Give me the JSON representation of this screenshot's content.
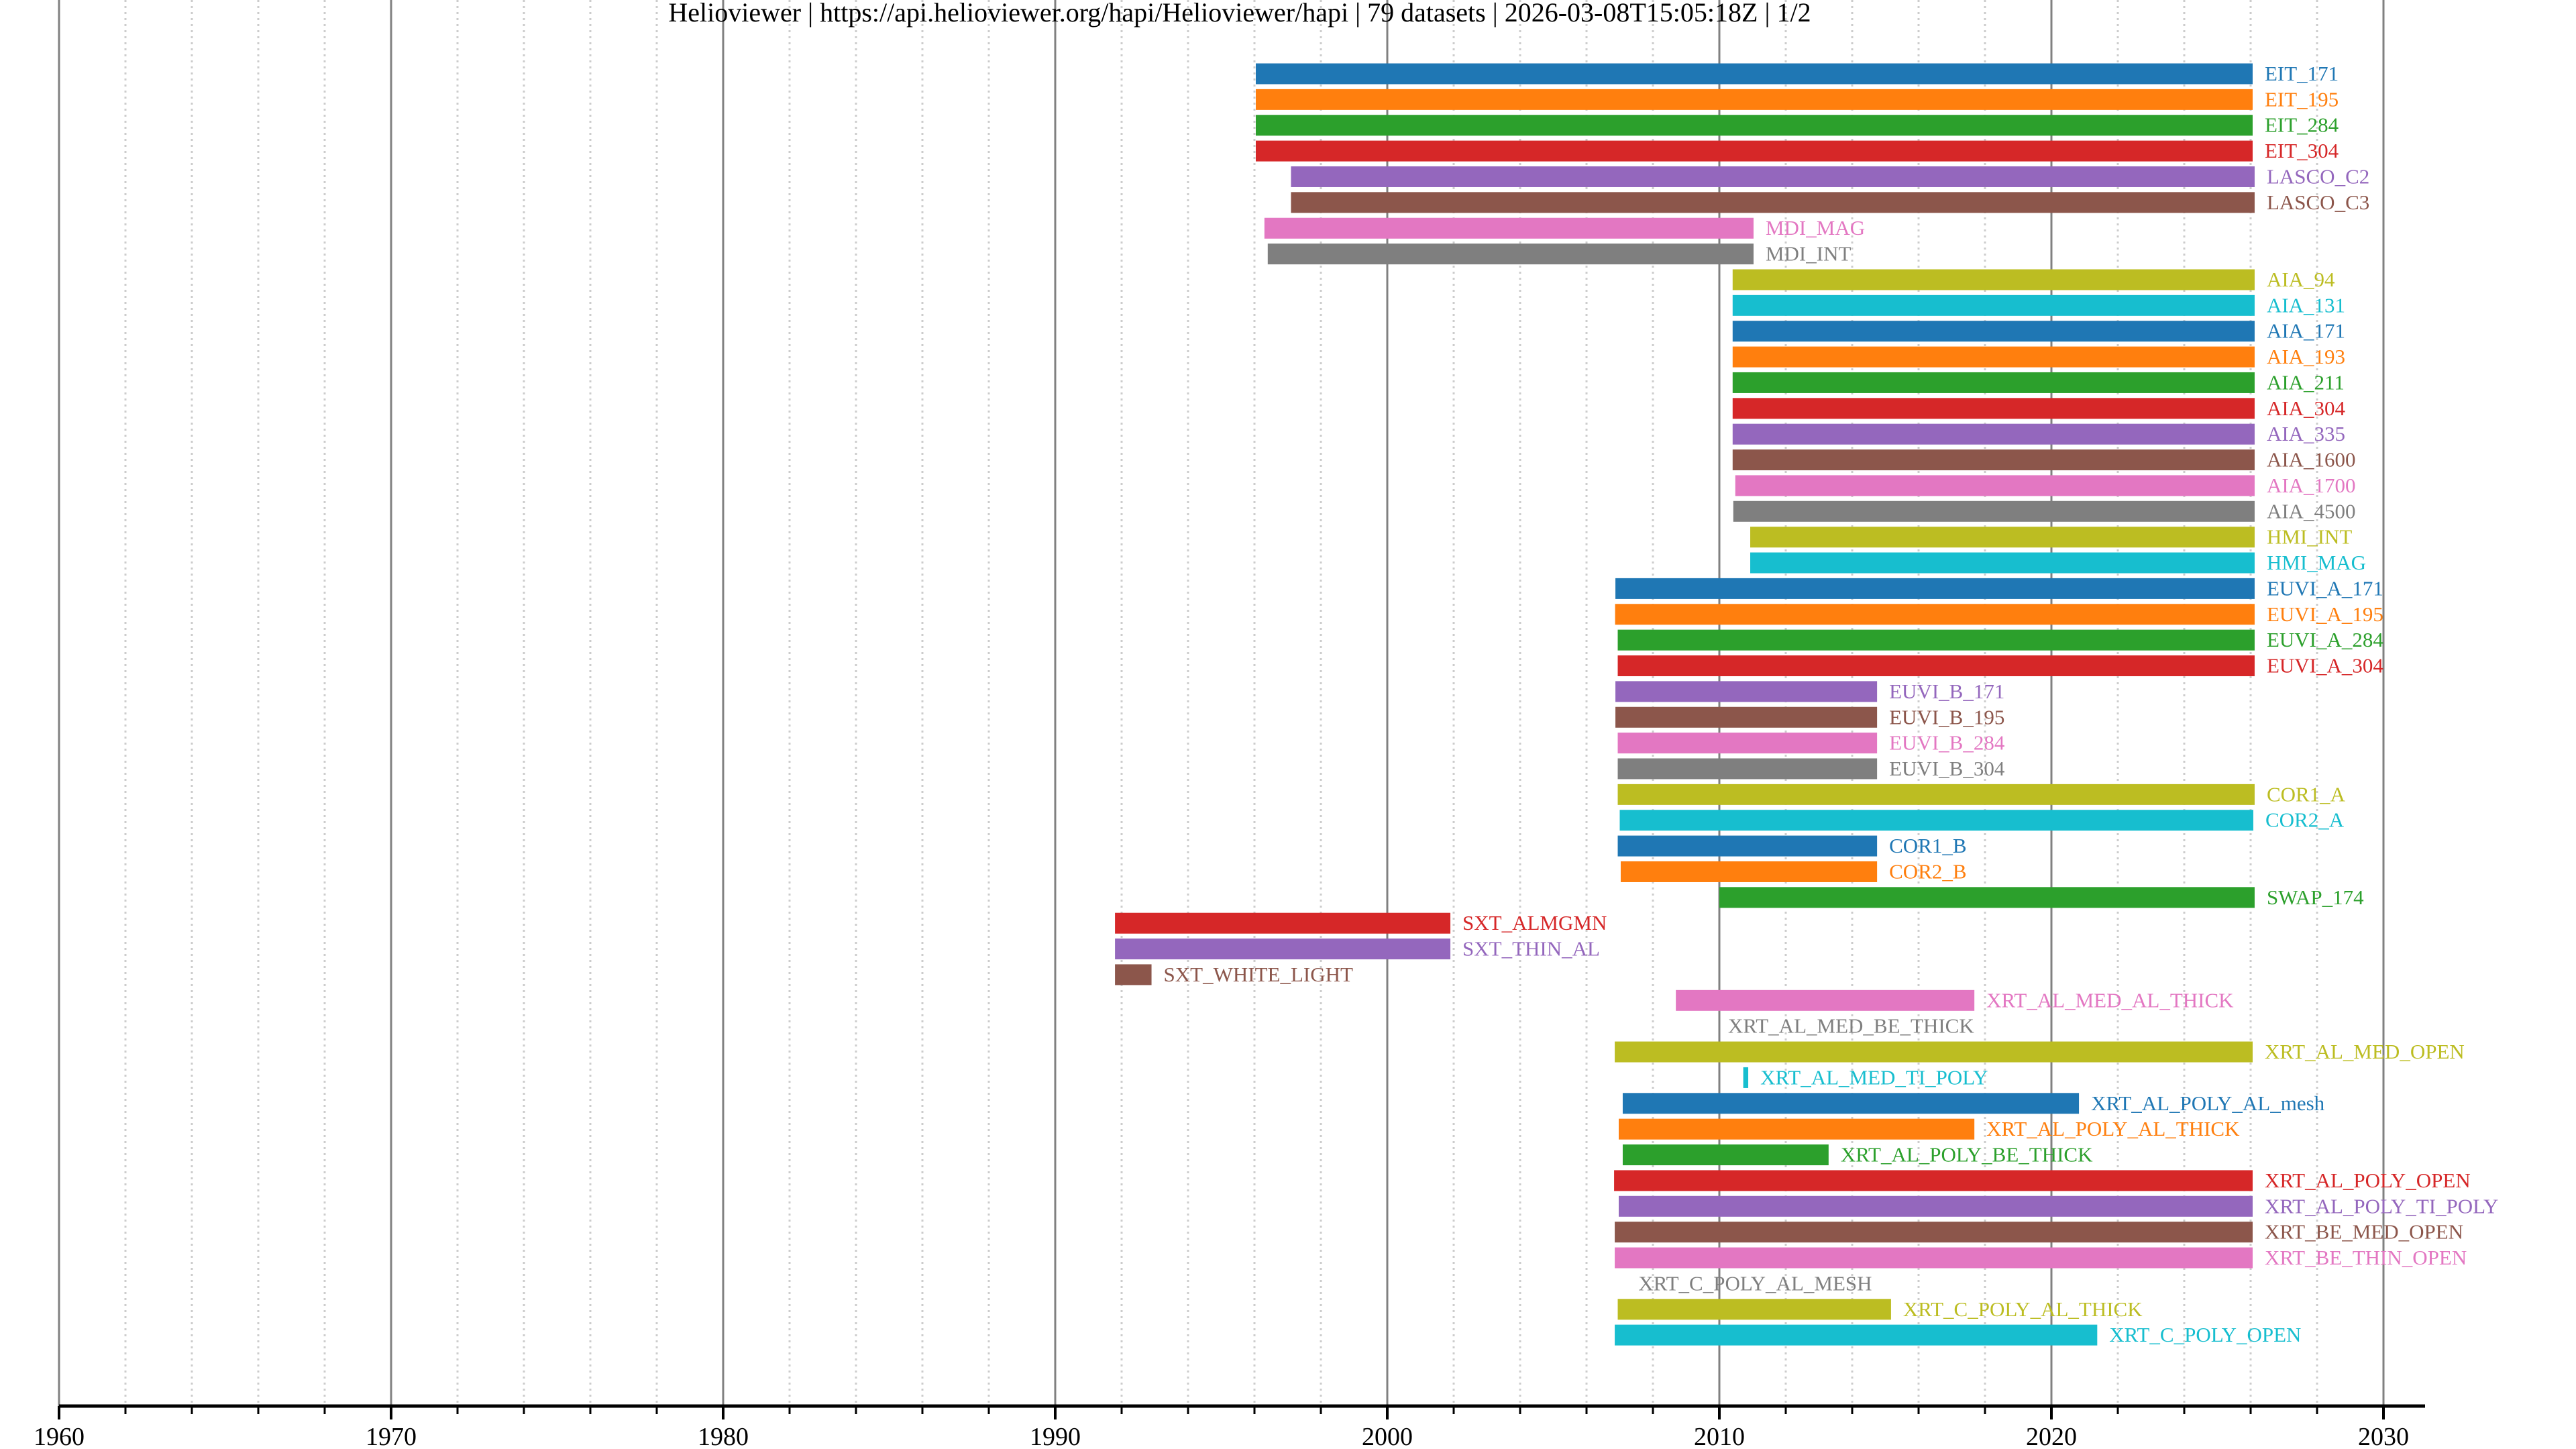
{
  "chart_data": {
    "type": "timeline",
    "title": "Helioviewer | https://api.helioviewer.org/hapi/Helioviewer/hapi | 79 datasets | 2026-03-08T15:05:18Z | 1/2",
    "title_parts": {
      "server_name": "Helioviewer",
      "server_url": "https://api.helioviewer.org/hapi/Helioviewer/hapi",
      "dataset_count": "79 datasets",
      "timestamp": "2026-03-08T15:05:18Z",
      "page": "1/2"
    },
    "xlabel": "",
    "ylabel": "",
    "xlim": [
      1960,
      2031.2
    ],
    "x_ticks_major": [
      1960,
      1970,
      1980,
      1990,
      2000,
      2010,
      2020,
      2030
    ],
    "x_tick_labels": [
      "1960",
      "1970",
      "1980",
      "1990",
      "2000",
      "2010",
      "2020",
      "2030"
    ],
    "x_minor_step": 2,
    "grid": "major solid, minor dotted (vertical)",
    "legend": "none (labels at bar ends)",
    "colors": {
      "c0": "#1f77b4",
      "c1": "#ff7f0e",
      "c2": "#2ca02c",
      "c3": "#d62728",
      "c4": "#9467bd",
      "c5": "#8c564b",
      "c6": "#e377c2",
      "c7": "#7f7f7f",
      "c8": "#bcbd22",
      "c9": "#17becf",
      "major_grid": "#808080",
      "minor_grid": "#cccccc",
      "axis": "#000000"
    },
    "series": [
      {
        "name": "EIT_171",
        "start": 1996.04,
        "end": 2026.06,
        "color": "#1f77b4"
      },
      {
        "name": "EIT_195",
        "start": 1996.04,
        "end": 2026.06,
        "color": "#ff7f0e"
      },
      {
        "name": "EIT_284",
        "start": 1996.04,
        "end": 2026.06,
        "color": "#2ca02c"
      },
      {
        "name": "EIT_304",
        "start": 1996.04,
        "end": 2026.06,
        "color": "#d62728"
      },
      {
        "name": "LASCO_C2",
        "start": 1997.1,
        "end": 2026.12,
        "color": "#9467bd"
      },
      {
        "name": "LASCO_C3",
        "start": 1997.1,
        "end": 2026.12,
        "color": "#8c564b"
      },
      {
        "name": "MDI_MAG",
        "start": 1996.3,
        "end": 2011.03,
        "color": "#e377c2"
      },
      {
        "name": "MDI_INT",
        "start": 1996.4,
        "end": 2011.03,
        "color": "#7f7f7f"
      },
      {
        "name": "AIA_94",
        "start": 2010.4,
        "end": 2026.12,
        "color": "#bcbd22"
      },
      {
        "name": "AIA_131",
        "start": 2010.4,
        "end": 2026.12,
        "color": "#17becf"
      },
      {
        "name": "AIA_171",
        "start": 2010.4,
        "end": 2026.12,
        "color": "#1f77b4"
      },
      {
        "name": "AIA_193",
        "start": 2010.4,
        "end": 2026.12,
        "color": "#ff7f0e"
      },
      {
        "name": "AIA_211",
        "start": 2010.4,
        "end": 2026.12,
        "color": "#2ca02c"
      },
      {
        "name": "AIA_304",
        "start": 2010.4,
        "end": 2026.12,
        "color": "#d62728"
      },
      {
        "name": "AIA_335",
        "start": 2010.4,
        "end": 2026.12,
        "color": "#9467bd"
      },
      {
        "name": "AIA_1600",
        "start": 2010.4,
        "end": 2026.12,
        "color": "#8c564b"
      },
      {
        "name": "AIA_1700",
        "start": 2010.48,
        "end": 2026.12,
        "color": "#e377c2"
      },
      {
        "name": "AIA_4500",
        "start": 2010.42,
        "end": 2026.12,
        "color": "#7f7f7f"
      },
      {
        "name": "HMI_INT",
        "start": 2010.93,
        "end": 2026.12,
        "color": "#bcbd22"
      },
      {
        "name": "HMI_MAG",
        "start": 2010.93,
        "end": 2026.12,
        "color": "#17becf"
      },
      {
        "name": "EUVI_A_171",
        "start": 2006.87,
        "end": 2026.12,
        "color": "#1f77b4"
      },
      {
        "name": "EUVI_A_195",
        "start": 2006.86,
        "end": 2026.12,
        "color": "#ff7f0e"
      },
      {
        "name": "EUVI_A_284",
        "start": 2006.94,
        "end": 2026.12,
        "color": "#2ca02c"
      },
      {
        "name": "EUVI_A_304",
        "start": 2006.94,
        "end": 2026.12,
        "color": "#d62728"
      },
      {
        "name": "EUVI_B_171",
        "start": 2006.87,
        "end": 2014.75,
        "color": "#9467bd"
      },
      {
        "name": "EUVI_B_195",
        "start": 2006.87,
        "end": 2014.75,
        "color": "#8c564b"
      },
      {
        "name": "EUVI_B_284",
        "start": 2006.94,
        "end": 2014.75,
        "color": "#e377c2"
      },
      {
        "name": "EUVI_B_304",
        "start": 2006.94,
        "end": 2014.75,
        "color": "#7f7f7f"
      },
      {
        "name": "COR1_A",
        "start": 2006.94,
        "end": 2026.12,
        "color": "#bcbd22"
      },
      {
        "name": "COR2_A",
        "start": 2007.0,
        "end": 2026.08,
        "color": "#17becf"
      },
      {
        "name": "COR1_B",
        "start": 2006.94,
        "end": 2014.75,
        "color": "#1f77b4"
      },
      {
        "name": "COR2_B",
        "start": 2007.03,
        "end": 2014.75,
        "color": "#ff7f0e"
      },
      {
        "name": "SWAP_174",
        "start": 2010.0,
        "end": 2026.12,
        "color": "#2ca02c"
      },
      {
        "name": "SXT_ALMGMN",
        "start": 1991.8,
        "end": 2001.9,
        "color": "#d62728"
      },
      {
        "name": "SXT_THIN_AL",
        "start": 1991.8,
        "end": 2001.9,
        "color": "#9467bd"
      },
      {
        "name": "SXT_WHITE_LIGHT",
        "start": 1991.8,
        "end": 1992.9,
        "color": "#8c564b"
      },
      {
        "name": "XRT_AL_MED_AL_THICK",
        "start": 2008.69,
        "end": 2017.68,
        "color": "#e377c2"
      },
      {
        "name": "XRT_AL_MED_BE_THICK",
        "start": 2009.9,
        "end": 2009.9,
        "color": "#7f7f7f"
      },
      {
        "name": "XRT_AL_MED_OPEN",
        "start": 2006.85,
        "end": 2026.06,
        "color": "#bcbd22"
      },
      {
        "name": "XRT_AL_MED_TI_POLY",
        "start": 2010.72,
        "end": 2010.87,
        "color": "#17becf"
      },
      {
        "name": "XRT_AL_POLY_AL_mesh",
        "start": 2007.09,
        "end": 2020.83,
        "color": "#1f77b4"
      },
      {
        "name": "XRT_AL_POLY_AL_THICK",
        "start": 2006.97,
        "end": 2017.68,
        "color": "#ff7f0e"
      },
      {
        "name": "XRT_AL_POLY_BE_THICK",
        "start": 2007.09,
        "end": 2013.29,
        "color": "#2ca02c"
      },
      {
        "name": "XRT_AL_POLY_OPEN",
        "start": 2006.83,
        "end": 2026.06,
        "color": "#d62728"
      },
      {
        "name": "XRT_AL_POLY_TI_POLY",
        "start": 2006.97,
        "end": 2026.06,
        "color": "#9467bd"
      },
      {
        "name": "XRT_BE_MED_OPEN",
        "start": 2006.85,
        "end": 2026.06,
        "color": "#8c564b"
      },
      {
        "name": "XRT_BE_THIN_OPEN",
        "start": 2006.85,
        "end": 2026.06,
        "color": "#e377c2"
      },
      {
        "name": "XRT_C_POLY_AL_MESH",
        "start": 2007.2,
        "end": 2007.2,
        "color": "#7f7f7f"
      },
      {
        "name": "XRT_C_POLY_AL_THICK",
        "start": 2006.94,
        "end": 2015.17,
        "color": "#bcbd22"
      },
      {
        "name": "XRT_C_POLY_OPEN",
        "start": 2006.85,
        "end": 2021.38,
        "color": "#17becf"
      }
    ]
  }
}
